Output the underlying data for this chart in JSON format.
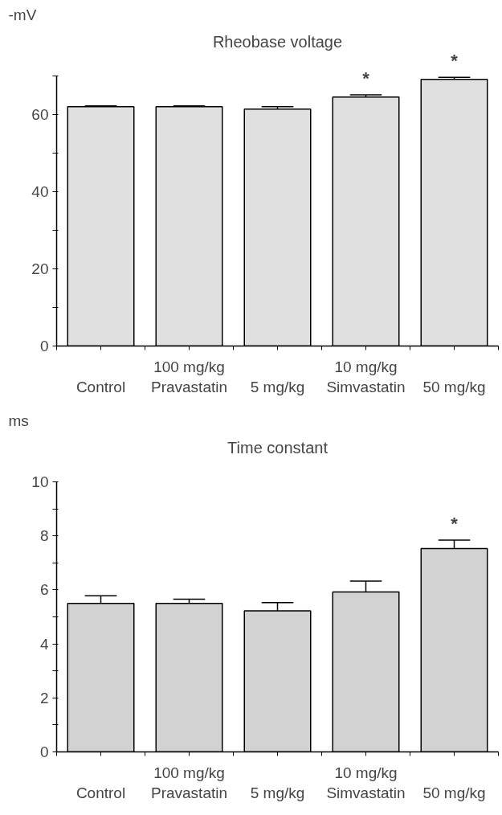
{
  "chart_data": [
    {
      "type": "bar",
      "title": "Rheobase voltage",
      "ylabel": "-mV",
      "categories": [
        "Control",
        "100 mg/kg\nPravastatin",
        "5 mg/kg",
        "10 mg/kg\nSimvastatin",
        "50 mg/kg"
      ],
      "values": [
        62,
        62,
        61.4,
        64.5,
        69.1
      ],
      "errors": [
        0.2,
        0.2,
        0.6,
        0.6,
        0.5
      ],
      "color": "#e0e0e0",
      "ylim": [
        0,
        70
      ],
      "yticks": [
        0,
        {
          "value": 10,
          "label": null
        },
        20,
        {
          "value": 30,
          "label": null
        },
        40,
        {
          "value": 50,
          "label": null
        },
        60,
        {
          "value": 70,
          "label": null
        }
      ],
      "grid": false,
      "value_labels": [
        null,
        null,
        null,
        "*",
        "*"
      ]
    },
    {
      "type": "bar",
      "title": "Time constant",
      "ylabel": "ms",
      "categories": [
        "Control",
        "100 mg/kg\nPravastatin",
        "5 mg/kg",
        "10 mg/kg\nSimvastatin",
        "50 mg/kg"
      ],
      "values": [
        5.5,
        5.5,
        5.22,
        5.92,
        7.53
      ],
      "errors": [
        0.28,
        0.15,
        0.31,
        0.4,
        0.31
      ],
      "color": "#d2d2d2",
      "ylim": [
        0,
        10
      ],
      "yticks": [
        0,
        {
          "value": 1,
          "label": null
        },
        2,
        {
          "value": 3,
          "label": null
        },
        4,
        {
          "value": 5,
          "label": null
        },
        6,
        {
          "value": 7,
          "label": null
        },
        8,
        {
          "value": 9,
          "label": null
        },
        10
      ],
      "grid": false,
      "value_labels": [
        null,
        null,
        null,
        null,
        "*"
      ]
    }
  ]
}
